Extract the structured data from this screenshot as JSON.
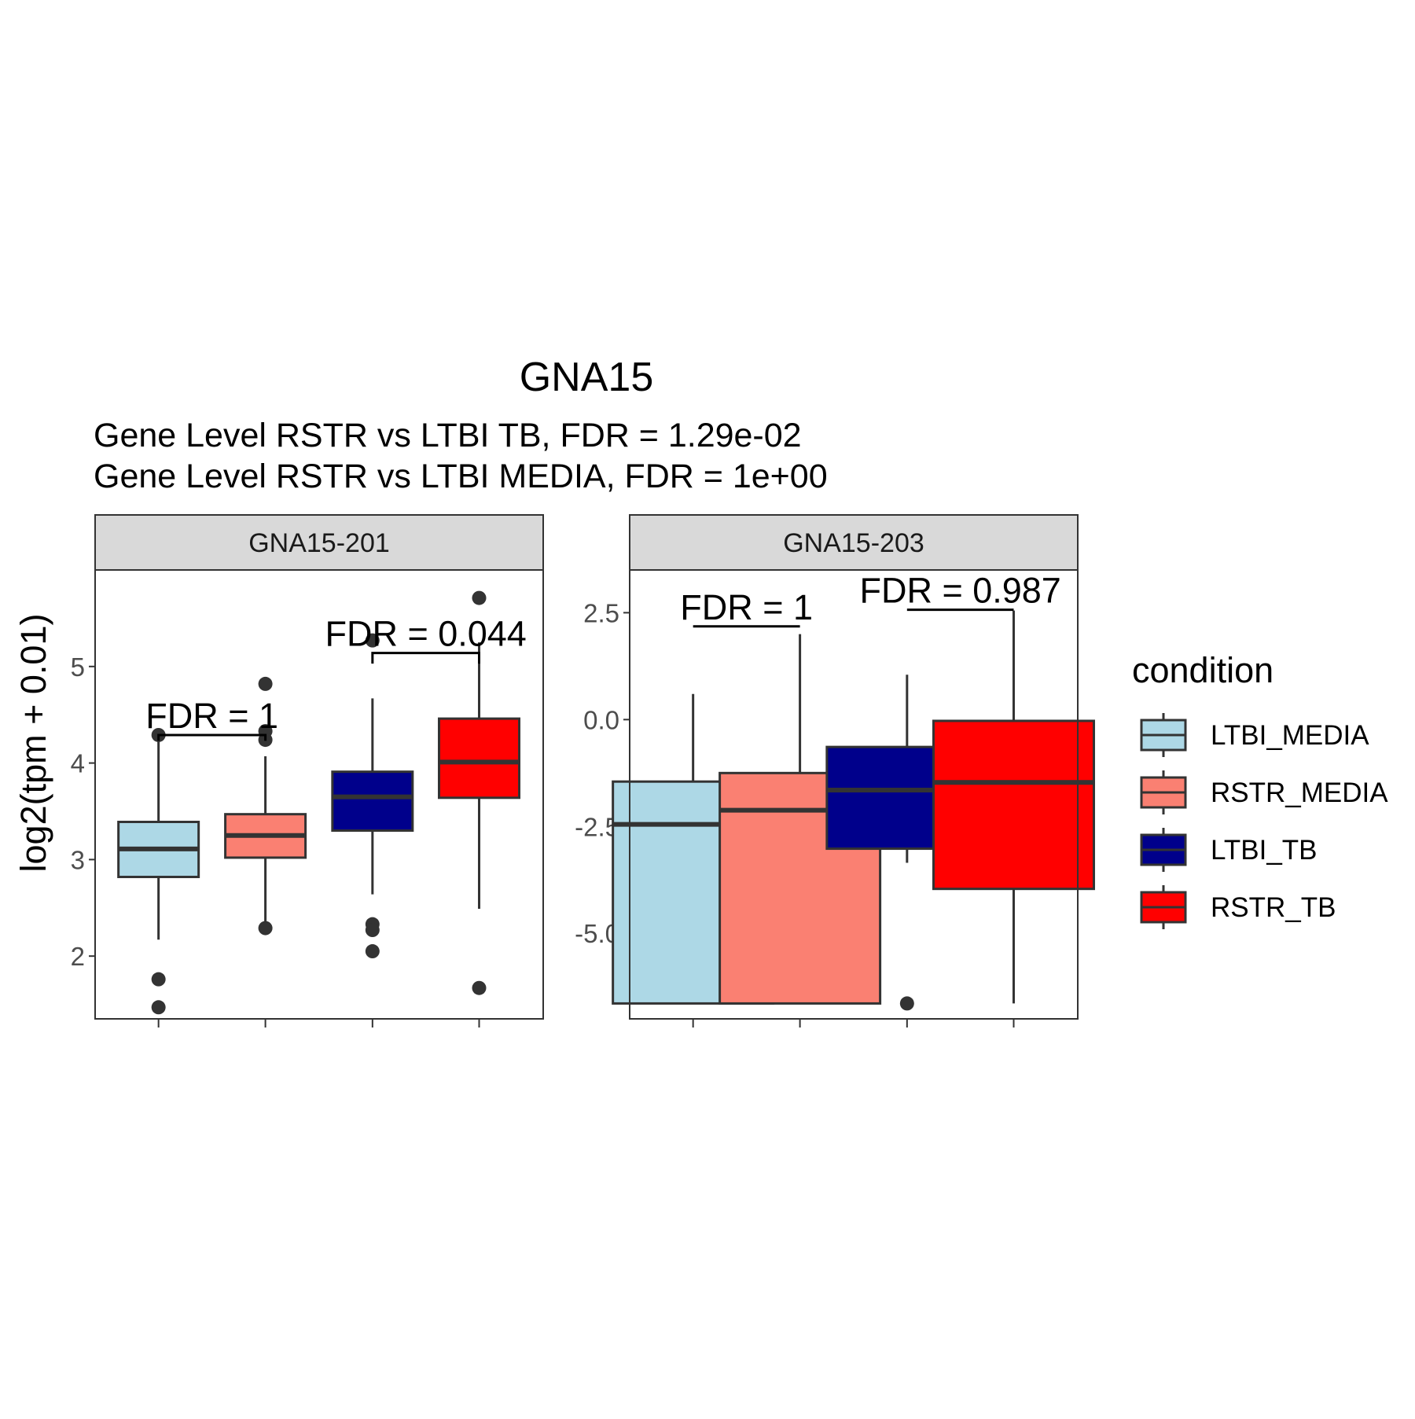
{
  "chart_data": {
    "type": "box",
    "title": "GNA15",
    "subtitle_lines": [
      "Gene Level RSTR vs LTBI TB, FDR =  1.29e-02",
      "Gene Level RSTR vs LTBI MEDIA, FDR =  1e+00"
    ],
    "ylabel": "log2(tpm + 0.01)",
    "legend": {
      "title": "condition",
      "position": "right",
      "entries": [
        {
          "label": "LTBI_MEDIA",
          "color": "#ADD8E6"
        },
        {
          "label": "RSTR_MEDIA",
          "color": "#FA8072"
        },
        {
          "label": "LTBI_TB",
          "color": "#00008B"
        },
        {
          "label": "RSTR_TB",
          "color": "#FF0000"
        }
      ]
    },
    "categories": [
      "LTBI_MEDIA",
      "RSTR_MEDIA",
      "LTBI_TB",
      "RSTR_TB"
    ],
    "panels": [
      {
        "strip": "GNA15-201",
        "ylim": [
          1.35,
          6.0
        ],
        "yticks": [
          {
            "value": 2,
            "label": "2"
          },
          {
            "value": 3,
            "label": "3"
          },
          {
            "value": 4,
            "label": "4"
          },
          {
            "value": 5,
            "label": "5"
          }
        ],
        "boxes": [
          {
            "category": "LTBI_MEDIA",
            "q1": 2.82,
            "median": 3.11,
            "q3": 3.39,
            "whisker_low": 2.17,
            "whisker_high": 4.28,
            "outliers": [
              4.29,
              1.76,
              1.47
            ]
          },
          {
            "category": "RSTR_MEDIA",
            "q1": 3.02,
            "median": 3.25,
            "q3": 3.47,
            "whisker_low": 2.3,
            "whisker_high": 4.07,
            "outliers": [
              4.82,
              4.33,
              4.24,
              2.29
            ]
          },
          {
            "category": "LTBI_TB",
            "q1": 3.3,
            "median": 3.65,
            "q3": 3.91,
            "whisker_low": 2.64,
            "whisker_high": 4.67,
            "outliers": [
              5.27,
              2.33,
              2.27,
              2.05
            ]
          },
          {
            "category": "RSTR_TB",
            "q1": 3.64,
            "median": 4.01,
            "q3": 4.46,
            "whisker_low": 2.49,
            "whisker_high": 5.25,
            "outliers": [
              5.71,
              1.67
            ]
          }
        ],
        "annotations": [
          {
            "text": "FDR =  1",
            "from": "LTBI_MEDIA",
            "to": "RSTR_MEDIA",
            "y": 4.29,
            "tip": 0.06
          },
          {
            "text": "FDR =  0.044",
            "from": "LTBI_TB",
            "to": "RSTR_TB",
            "y": 5.14,
            "tip": 0.11
          }
        ]
      },
      {
        "strip": "GNA15-203",
        "ylim": [
          -7.0,
          3.5
        ],
        "yticks": [
          {
            "value": -5.0,
            "label": "-5.0"
          },
          {
            "value": -2.5,
            "label": "-2.5"
          },
          {
            "value": 0.0,
            "label": "0.0"
          },
          {
            "value": 2.5,
            "label": "2.5"
          }
        ],
        "boxes": [
          {
            "category": "LTBI_MEDIA",
            "q1": -6.64,
            "median": -2.45,
            "q3": -1.45,
            "whisker_low": -6.64,
            "whisker_high": 0.6,
            "outliers": []
          },
          {
            "category": "RSTR_MEDIA",
            "q1": -6.64,
            "median": -2.12,
            "q3": -1.25,
            "whisker_low": -6.64,
            "whisker_high": 2.0,
            "outliers": []
          },
          {
            "category": "LTBI_TB",
            "q1": -3.02,
            "median": -1.65,
            "q3": -0.64,
            "whisker_low": -3.35,
            "whisker_high": 1.05,
            "outliers": [
              -6.64
            ]
          },
          {
            "category": "RSTR_TB",
            "q1": -3.96,
            "median": -1.47,
            "q3": -0.03,
            "whisker_low": -6.64,
            "whisker_high": 2.55,
            "outliers": []
          }
        ],
        "annotations": [
          {
            "text": "FDR =  1",
            "from": "LTBI_MEDIA",
            "to": "RSTR_MEDIA",
            "y": 2.18,
            "tip": 0.0
          },
          {
            "text": "FDR =  0.987",
            "from": "LTBI_TB",
            "to": "RSTR_TB",
            "y": 2.57,
            "tip": 0.0
          }
        ]
      }
    ]
  }
}
